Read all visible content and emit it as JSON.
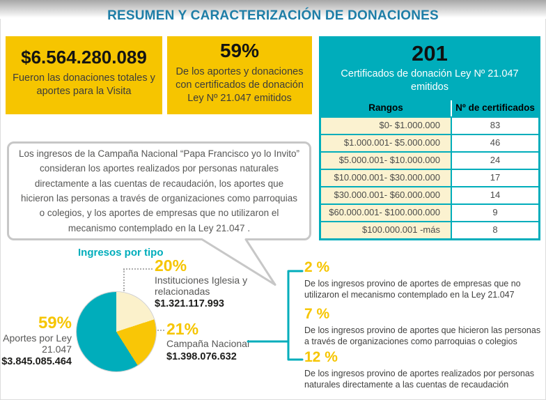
{
  "title": "RESUMEN Y CARACTERIZACIÓN DE DONACIONES",
  "colors": {
    "accent_yellow": "#F6C500",
    "accent_teal": "#00ADBB",
    "cream": "#FBF2D0",
    "title_blue": "#1E7EA7",
    "gray_text": "#575756",
    "dark_text": "#1D1D1B"
  },
  "stat_boxes": [
    {
      "value": "$6.564.280.089",
      "caption": "Fueron las donaciones totales y aportes para la Visita"
    },
    {
      "value": "59%",
      "caption": "De los aportes y donaciones con certificados de donación Ley Nº 21.047 emitidos"
    }
  ],
  "certificates_panel": {
    "value": "201",
    "caption": "Certificados de donación Ley Nº 21.047 emitidos"
  },
  "speech_bubble": {
    "text": "Los ingresos de la Campaña Nacional “Papa Francisco yo lo Invito” consideran los aportes realizados por personas naturales directamente a las cuentas de recaudación, los aportes que hicieron las personas a través de organizaciones como parroquias o colegios, y los aportes de empresas que no utilizaron el mecanismo contemplado en la Ley 21.047 ."
  },
  "chart_data": [
    {
      "type": "pie",
      "title": "Ingresos por tipo",
      "legend_position": "around",
      "slices": [
        {
          "label": "Instituciones Iglesia y relacionadas",
          "value": 20,
          "pct_label": "20%",
          "amount": "$1.321.117.993",
          "color": "#FBF1CB"
        },
        {
          "label": "Campaña Nacional",
          "value": 21,
          "pct_label": "21%",
          "amount": "$1.398.076.632",
          "color": "#F9C606"
        },
        {
          "label": "Aportes por Ley 21.047",
          "value": 59,
          "pct_label": "59%",
          "amount": "$3.845.085.464",
          "color": "#00ADBB"
        }
      ]
    },
    {
      "type": "table",
      "headers": [
        "Rangos",
        "Nº de certificados"
      ],
      "rows": [
        [
          "$0- $1.000.000",
          "83"
        ],
        [
          "$1.000.001- $5.000.000",
          "46"
        ],
        [
          "$5.000.001- $10.000.000",
          "24"
        ],
        [
          "$10.000.001- $30.000.000",
          "17"
        ],
        [
          "$30.000.001- $60.000.000",
          "14"
        ],
        [
          "$60.000.001- $100.000.000",
          "9"
        ],
        [
          "$100.000.001 -más",
          "8"
        ]
      ]
    }
  ],
  "breakdown": [
    {
      "pct": "2 %",
      "text": "De los ingresos provino de aportes de empresas que no utilizaron el mecanismo contemplado en la Ley 21.047"
    },
    {
      "pct": "7 %",
      "text": "De los ingresos provino de aportes que hicieron las personas a través de organizaciones como parroquias o colegios"
    },
    {
      "pct": "12 %",
      "text": "De los ingresos provino de aportes realizados por personas naturales directamente a las cuentas de recaudación"
    }
  ]
}
